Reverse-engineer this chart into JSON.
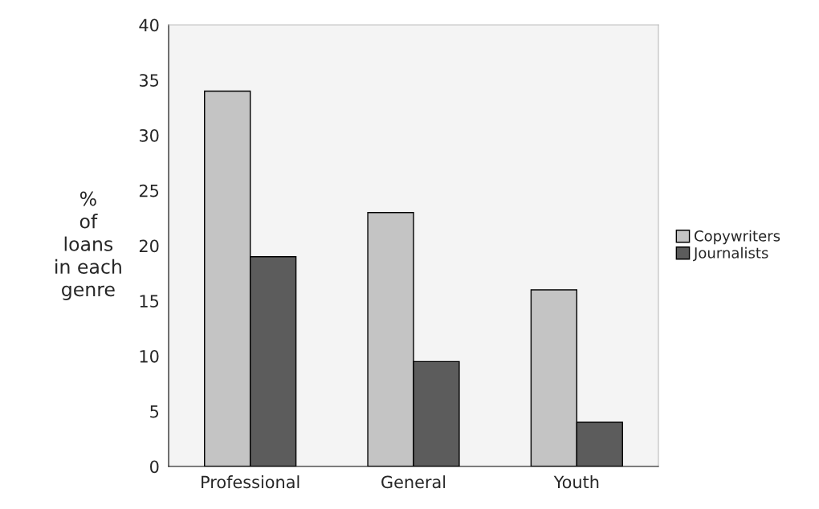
{
  "chart_data": {
    "type": "bar",
    "ylabel": "%\nof\nloans\nin each\ngenre",
    "categories": [
      "Professional",
      "General",
      "Youth"
    ],
    "series": [
      {
        "name": "Copywriters",
        "color": "#c4c4c4",
        "values": [
          34,
          23,
          16
        ]
      },
      {
        "name": "Journalists",
        "color": "#5c5c5c",
        "values": [
          19,
          9.5,
          4
        ]
      }
    ],
    "ylim": [
      0,
      40
    ],
    "yticks": [
      0,
      5,
      10,
      15,
      20,
      25,
      30,
      35,
      40
    ],
    "grid": false,
    "legend": "right"
  }
}
